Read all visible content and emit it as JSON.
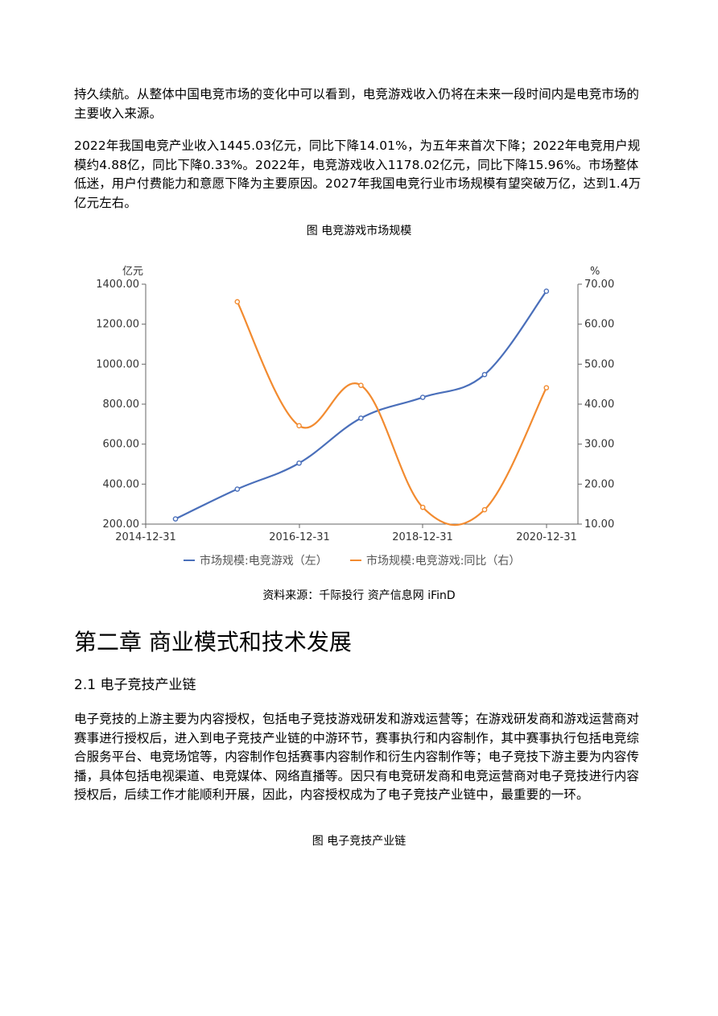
{
  "paragraphs": {
    "p1": "持久续航。从整体中国电竞市场的变化中可以看到，电竞游戏收入仍将在未来一段时间内是电竞市场的主要收入来源。",
    "p2": "2022年我国电竞产业收入1445.03亿元，同比下降14.01%，为五年来首次下降；2022年电竞用户规模约4.88亿，同比下降0.33%。2022年，电竞游戏收入1178.02亿元，同比下降15.96%。市场整体低迷，用户付费能力和意愿下降为主要原因。2027年我国电竞行业市场规模有望突破万亿，达到1.4万亿元左右。",
    "p3": "电子竞技的上游主要为内容授权，包括电子竞技游戏研发和游戏运营等；在游戏研发商和游戏运营商对赛事进行授权后，进入到电子竞技产业链的中游环节，赛事执行和内容制作，其中赛事执行包括电竞综合服务平台、电竞场馆等，内容制作包括赛事内容制作和衍生内容制作等；电子竞技下游主要为内容传播，具体包括电视渠道、电竞媒体、网络直播等。因只有电竞研发商和电竞运营商对电子竞技进行内容授权后，后续工作才能顺利开展，因此，内容授权成为了电子竞技产业链中，最重要的一环。"
  },
  "figure1_caption": "图 电竞游戏市场规模",
  "figure1_source": "资料来源：千际投行 资产信息网 iFinD",
  "chapter_title": "第二章 商业模式和技术发展",
  "section_title": "2.1 电子竞技产业链",
  "figure2_caption": "图 电子竞技产业链",
  "chart_data": {
    "type": "line",
    "x_ticks": [
      "2014-12-31",
      "2016-12-31",
      "2018-12-31",
      "2020-12-31"
    ],
    "x": [
      "2014-12-31",
      "2015-12-31",
      "2016-12-31",
      "2017-12-31",
      "2018-12-31",
      "2019-12-31",
      "2020-12-31"
    ],
    "y_left_label": "亿元",
    "y_right_label": "%",
    "y_left_range": [
      200,
      1400
    ],
    "y_right_range": [
      10,
      70
    ],
    "y_left_ticks": [
      "200.00",
      "400.00",
      "600.00",
      "800.00",
      "1000.00",
      "1200.00",
      "1400.00"
    ],
    "y_right_ticks": [
      "10.00",
      "20.00",
      "30.00",
      "40.00",
      "50.00",
      "60.00",
      "70.00"
    ],
    "series": [
      {
        "name": "市场规模:电竞游戏（左）",
        "axis": "left",
        "color": "#4a6fba",
        "values": [
          226,
          375,
          505,
          730,
          834,
          948,
          1365
        ]
      },
      {
        "name": "市场规模:电竞游戏:同比（右）",
        "axis": "right",
        "color": "#f28b30",
        "values": [
          null,
          65.6,
          34.6,
          44.7,
          14.2,
          13.6,
          44.1
        ]
      }
    ],
    "legend_position": "bottom",
    "grid": false
  }
}
